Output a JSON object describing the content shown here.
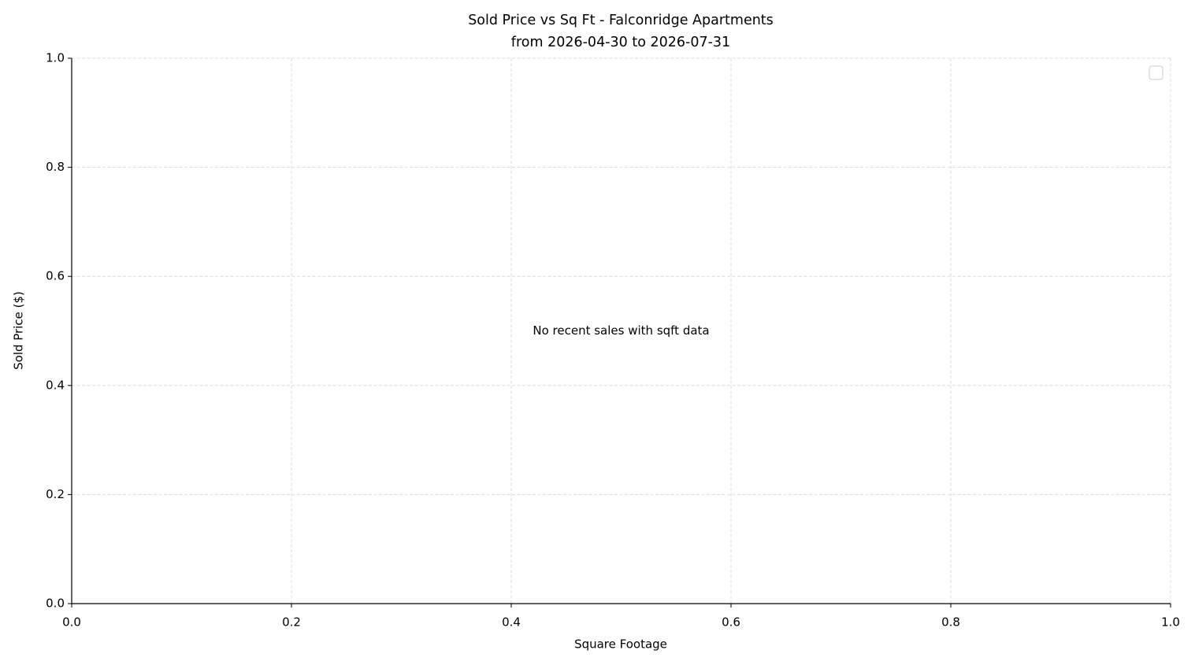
{
  "chart_data": {
    "type": "scatter",
    "title": "Sold Price vs Sq Ft - Falconridge Apartments",
    "subtitle": "from 2026-04-30 to 2026-07-31",
    "x_label": "Square Footage",
    "y_label": "Sold Price ($)",
    "annotation": "No recent sales with sqft data",
    "xlim": [
      0,
      1
    ],
    "ylim": [
      0,
      1
    ],
    "xticks": [
      {
        "value": 0,
        "label": "0.0"
      },
      0.2,
      0.4,
      0.6,
      0.8,
      {
        "value": 1,
        "label": "1.0"
      }
    ],
    "yticks": [
      {
        "value": 0,
        "label": "0.0"
      },
      0.2,
      0.4,
      0.6,
      0.8,
      {
        "value": 1,
        "label": "1.0"
      }
    ],
    "grid": true,
    "legend": "upper right"
  }
}
